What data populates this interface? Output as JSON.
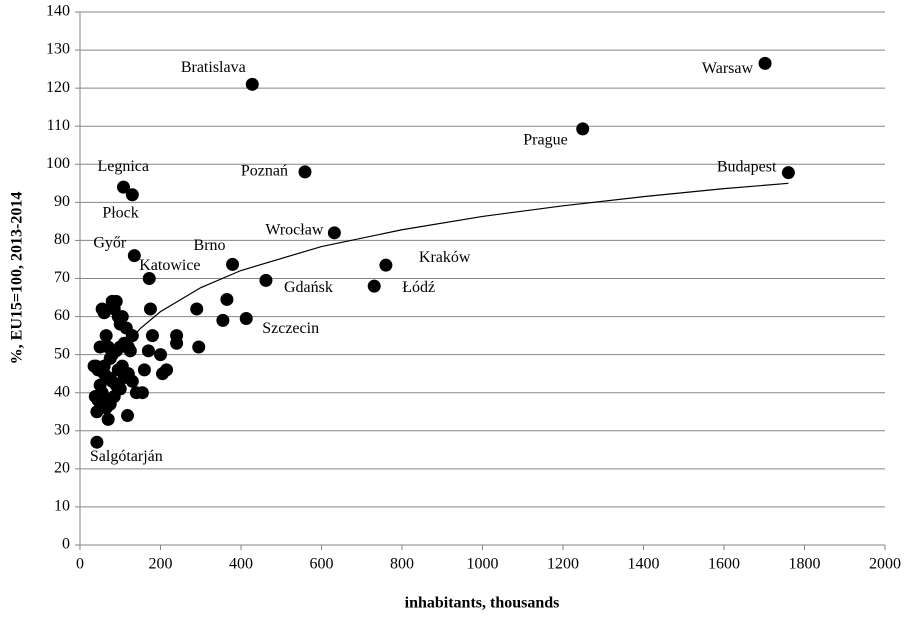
{
  "chart_data": {
    "type": "scatter",
    "x_label": "inhabitants, thousands",
    "y_label": "%, EU15=100, 2013-2014",
    "xlim": [
      0,
      2000
    ],
    "xticks": [
      0,
      200,
      400,
      600,
      800,
      1000,
      1200,
      1400,
      1600,
      1800,
      2000
    ],
    "ylim": [
      0,
      140
    ],
    "yticks": [
      0,
      10,
      20,
      30,
      40,
      50,
      60,
      70,
      80,
      90,
      100,
      110,
      120,
      130,
      140
    ],
    "grid": true,
    "color": "#000000",
    "series": [
      {
        "x": [
          1702,
          1760,
          1249,
          428,
          559,
          108,
          130,
          135,
          172,
          379,
          632,
          760,
          731,
          462,
          413,
          42,
          40,
          45,
          38,
          42,
          55,
          60,
          65,
          70,
          75,
          80,
          85,
          90,
          95,
          100,
          105,
          80,
          90,
          100,
          110,
          120,
          130,
          60,
          70,
          80,
          90,
          100,
          110,
          120,
          130,
          50,
          55,
          60,
          65,
          70,
          75,
          85,
          95,
          105,
          115,
          125,
          140,
          155,
          160,
          170,
          175,
          180,
          200,
          205,
          215,
          240,
          240,
          290,
          295,
          355,
          365,
          118,
          45,
          50,
          35,
          60
        ],
        "y": [
          126.5,
          97.8,
          109.3,
          121,
          98,
          94,
          92,
          76,
          70,
          73.7,
          82,
          73.5,
          68,
          69.5,
          59.5,
          27,
          47,
          46,
          39,
          35,
          62,
          61,
          55,
          52,
          49,
          64,
          62,
          64,
          60,
          58,
          60,
          50,
          51,
          52,
          53,
          52,
          55,
          45,
          44,
          43,
          42,
          41,
          44,
          45,
          43,
          42,
          40,
          38,
          36,
          33,
          37,
          39,
          46,
          47,
          57,
          51,
          40,
          40,
          46,
          51,
          62,
          55,
          50,
          45,
          46,
          53,
          55,
          62,
          52,
          59,
          64.5,
          34,
          38,
          52,
          47,
          47
        ],
        "point_labels": [
          "Warsaw",
          "Budapest",
          "Prague",
          "Bratislava",
          "Poznań",
          "Legnica",
          "Płock",
          "Győr",
          "Katowice",
          "Brno",
          "Wrocław",
          "Kraków",
          "Łódź",
          "Gdańsk",
          "Szczecin",
          "Salgótarján",
          null,
          null,
          null,
          null,
          null,
          null,
          null,
          null,
          null,
          null,
          null,
          null,
          null,
          null,
          null,
          null,
          null,
          null,
          null,
          null,
          null,
          null,
          null,
          null,
          null,
          null,
          null,
          null,
          null,
          null,
          null,
          null,
          null,
          null,
          null,
          null,
          null,
          null,
          null,
          null,
          null,
          null,
          null,
          null,
          null,
          null,
          null,
          null,
          null,
          null,
          null,
          null,
          null,
          null,
          null,
          null,
          null,
          null,
          null,
          null
        ]
      }
    ],
    "trendline": {
      "color": "#000000",
      "x": [
        100,
        150,
        200,
        300,
        400,
        600,
        800,
        1000,
        1200,
        1400,
        1600,
        1760
      ],
      "y": [
        50.6,
        56.9,
        61.3,
        67.6,
        72.1,
        78.4,
        82.8,
        86.3,
        89.1,
        91.5,
        93.6,
        95.0
      ]
    }
  }
}
